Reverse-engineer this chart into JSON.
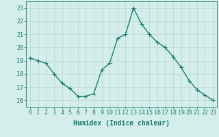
{
  "x": [
    0,
    1,
    2,
    3,
    4,
    5,
    6,
    7,
    8,
    9,
    10,
    11,
    12,
    13,
    14,
    15,
    16,
    17,
    18,
    19,
    20,
    21,
    22,
    23
  ],
  "y": [
    19.2,
    19.0,
    18.8,
    18.0,
    17.3,
    16.9,
    16.3,
    16.3,
    16.5,
    18.3,
    18.8,
    20.7,
    21.0,
    23.0,
    21.8,
    21.0,
    20.4,
    20.0,
    19.3,
    18.5,
    17.5,
    16.8,
    16.4,
    16.0
  ],
  "line_color": "#1a7a6e",
  "marker": "+",
  "marker_color": "#1a7a6e",
  "bg_color": "#d4eeeb",
  "grid_color": "#c0d8d4",
  "xlabel": "Humidex (Indice chaleur)",
  "ylabel_ticks": [
    16,
    17,
    18,
    19,
    20,
    21,
    22,
    23
  ],
  "xlim": [
    -0.5,
    23.5
  ],
  "ylim": [
    15.5,
    23.5
  ],
  "axis_color": "#1a7a6e",
  "tick_label_color": "#1a7a6e",
  "xlabel_color": "#1a7a6e",
  "font_family": "monospace",
  "xlabel_fontsize": 7,
  "tick_fontsize": 6,
  "linewidth": 1.0,
  "markersize": 4
}
